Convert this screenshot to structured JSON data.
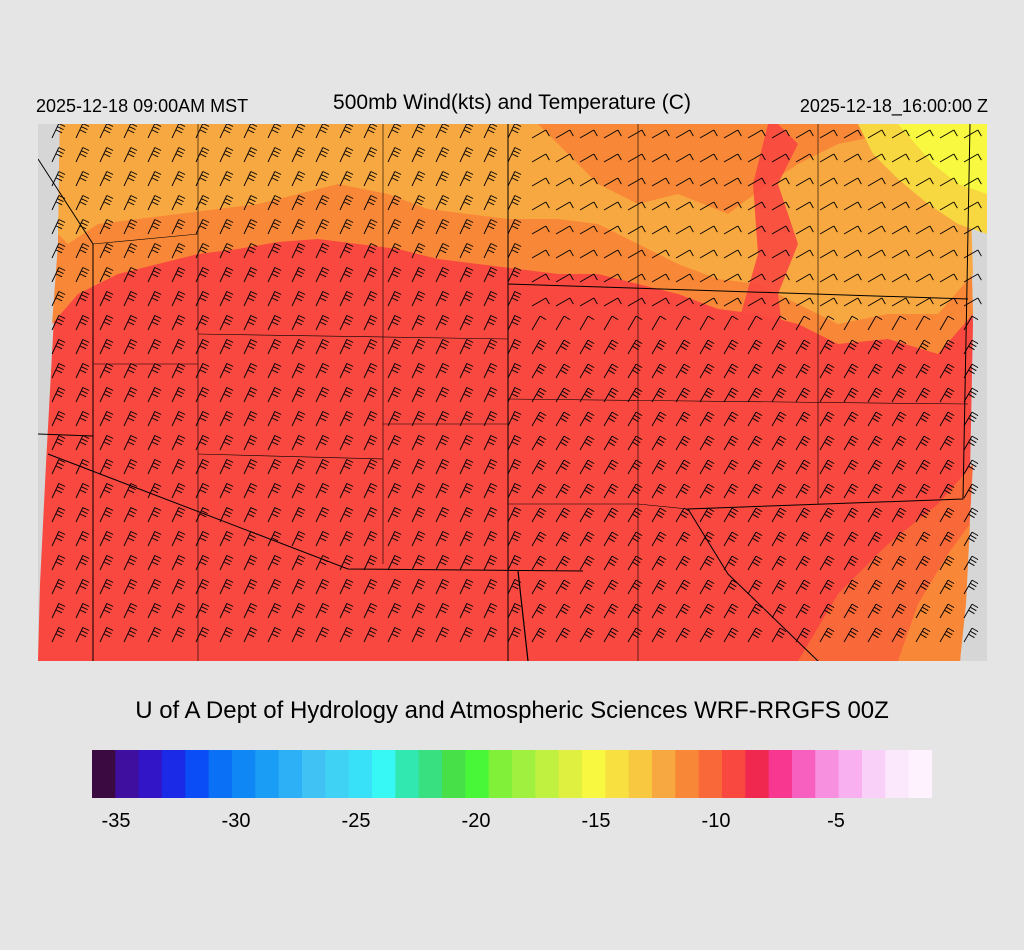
{
  "header": {
    "local_time": "2025-12-18 09:00AM MST",
    "title": "500mb Wind(kts) and Temperature (C)",
    "valid_time": "2025-12-18_16:00:00 Z"
  },
  "footer": {
    "credit": "U of A Dept of Hydrology and Atmospheric Sciences WRF-RRGFS 00Z"
  },
  "colorbar": {
    "min": -36,
    "max": -1,
    "colors": [
      "#3a0a40",
      "#3f0fa0",
      "#3215c6",
      "#1b2ae6",
      "#0a4cf5",
      "#0a70f5",
      "#0f88f5",
      "#1a9df5",
      "#2db0f5",
      "#40c2f5",
      "#40d2f5",
      "#38e0f8",
      "#38f8f5",
      "#30e8b0",
      "#38e080",
      "#48e048",
      "#48f838",
      "#80f038",
      "#a0f040",
      "#c0f040",
      "#e0f040",
      "#f8f840",
      "#f8e040",
      "#f8c840",
      "#f8a840",
      "#f88838",
      "#f86838",
      "#f84840",
      "#f02850",
      "#f83890",
      "#f860c0",
      "#f890e0",
      "#f8b0f0",
      "#f8d0f8",
      "#fce8fc",
      "#fff2ff"
    ],
    "tick_labels": [
      "-35",
      "-30",
      "-25",
      "-20",
      "-15",
      "-10",
      "-5"
    ],
    "tick_values": [
      -35,
      -30,
      -25,
      -20,
      -15,
      -10,
      -5
    ]
  },
  "map": {
    "temperature_bands": [
      {
        "temp": -10,
        "color": "#f8a840"
      },
      {
        "temp": -9,
        "color": "#f88838"
      },
      {
        "temp": -8,
        "color": "#f86838"
      },
      {
        "temp": -7,
        "color": "#f84840"
      }
    ],
    "cold_corner_color": "#f8f840",
    "nodata_color": "#d6d6d6"
  }
}
